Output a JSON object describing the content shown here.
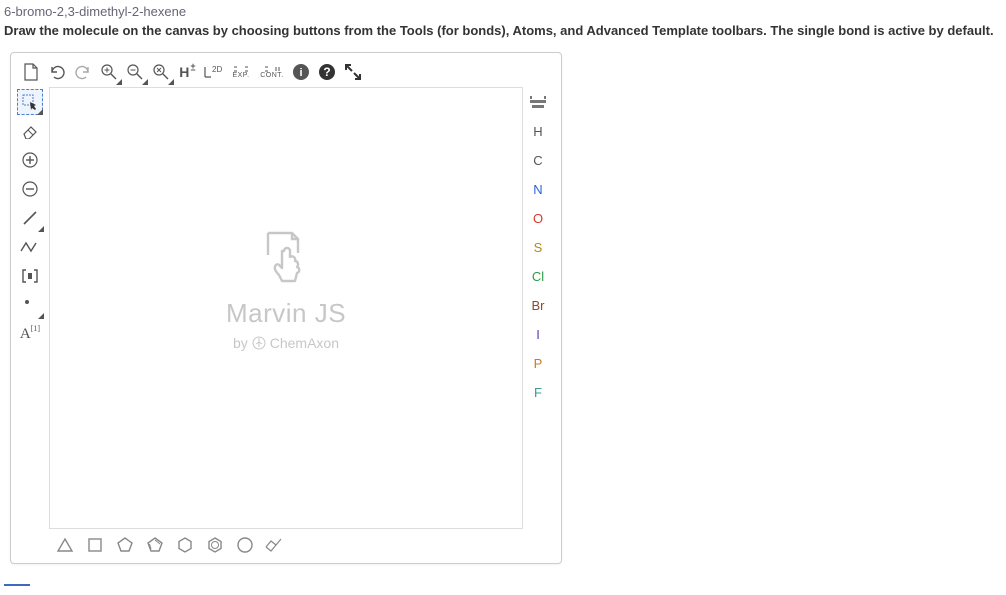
{
  "compound_name": "6-bromo-2,3-dimethyl-2-hexene",
  "instruction": "Draw the molecule on the canvas by choosing buttons from the Tools (for bonds), Atoms, and Advanced Template toolbars. The single bond is active by default.",
  "watermark": {
    "title": "Marvin JS",
    "by": "by",
    "brand": "ChemAxon"
  },
  "top_toolbar": [
    {
      "name": "new-document-icon",
      "glyph": "new"
    },
    {
      "name": "undo-icon",
      "glyph": "undo"
    },
    {
      "name": "redo-icon",
      "glyph": "redo"
    },
    {
      "name": "zoom-in-icon",
      "glyph": "zoomin"
    },
    {
      "name": "zoom-out-icon",
      "glyph": "zoomout"
    },
    {
      "name": "zoom-all-icon",
      "glyph": "zoomall"
    },
    {
      "name": "hydrogen-toggle-icon",
      "glyph": "H",
      "text": "H±"
    },
    {
      "name": "clean-2d-icon",
      "glyph": "2d",
      "text": "2D"
    },
    {
      "name": "export-icon",
      "glyph": "exp",
      "text": "EXP."
    },
    {
      "name": "continue-icon",
      "glyph": "cont",
      "text": "CONT."
    },
    {
      "name": "info-icon",
      "glyph": "info"
    },
    {
      "name": "help-icon",
      "glyph": "help"
    },
    {
      "name": "fullscreen-icon",
      "glyph": "fullscreen"
    }
  ],
  "left_toolbar": [
    {
      "name": "selection-tool-icon",
      "glyph": "select",
      "selected": true
    },
    {
      "name": "eraser-tool-icon",
      "glyph": "eraser"
    },
    {
      "name": "charge-plus-icon",
      "glyph": "chargeplus"
    },
    {
      "name": "charge-minus-icon",
      "glyph": "chargeminus"
    },
    {
      "name": "single-bond-icon",
      "glyph": "singlebond"
    },
    {
      "name": "chain-bond-icon",
      "glyph": "chain"
    },
    {
      "name": "bracket-icon",
      "glyph": "bracket"
    },
    {
      "name": "dot-tool-icon",
      "glyph": "dot"
    },
    {
      "name": "atom-label-icon",
      "glyph": "atomlabel",
      "text": "A"
    }
  ],
  "right_toolbar": [
    {
      "name": "periodic-table-icon",
      "glyph": "ptable"
    },
    {
      "name": "atom-h-button",
      "label": "H",
      "color": "#555555"
    },
    {
      "name": "atom-c-button",
      "label": "C",
      "color": "#555555"
    },
    {
      "name": "atom-n-button",
      "label": "N",
      "color": "#2e64d6"
    },
    {
      "name": "atom-o-button",
      "label": "O",
      "color": "#d23a2e"
    },
    {
      "name": "atom-s-button",
      "label": "S",
      "color": "#b58a1e"
    },
    {
      "name": "atom-cl-button",
      "label": "Cl",
      "color": "#2e9b47"
    },
    {
      "name": "atom-br-button",
      "label": "Br",
      "color": "#8a4b2c"
    },
    {
      "name": "atom-i-button",
      "label": "I",
      "color": "#6a3da8"
    },
    {
      "name": "atom-p-button",
      "label": "P",
      "color": "#c77a2a"
    },
    {
      "name": "atom-f-button",
      "label": "F",
      "color": "#3a9b8f"
    }
  ],
  "bottom_toolbar": [
    {
      "name": "triangle-template-icon",
      "shape": "triangle"
    },
    {
      "name": "square-template-icon",
      "shape": "square"
    },
    {
      "name": "pentagon-template-icon",
      "shape": "pentagon"
    },
    {
      "name": "cyclopentadiene-template-icon",
      "shape": "cyclopentadiene"
    },
    {
      "name": "hexagon-template-icon",
      "shape": "hexagon"
    },
    {
      "name": "benzene-template-icon",
      "shape": "benzene"
    },
    {
      "name": "heptagon-template-icon",
      "shape": "heptagon"
    },
    {
      "name": "chair-template-icon",
      "shape": "chair"
    }
  ],
  "colors": {
    "border": "#cccccc",
    "icon": "#555555",
    "watermark": "#c7c7c7",
    "selection": "#4a7fd6",
    "underline": "#3a6bbf"
  }
}
